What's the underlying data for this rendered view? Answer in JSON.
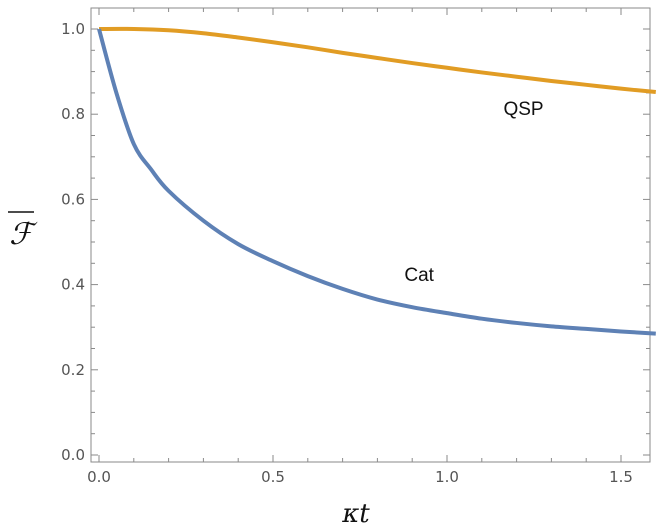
{
  "chart_data": {
    "type": "line",
    "xlabel": "κt",
    "ylabel": "ℱ",
    "xlim": [
      0,
      1.6
    ],
    "ylim": [
      -0.02,
      1.05
    ],
    "x_ticks": [
      "0.0",
      "0.5",
      "1.0",
      "1.5"
    ],
    "y_ticks": [
      "0.0",
      "0.2",
      "0.4",
      "0.6",
      "0.8",
      "1.0"
    ],
    "grid": false,
    "colors": {
      "QSP": "#e19c24",
      "Cat": "#5e81b5"
    },
    "series": [
      {
        "name": "QSP",
        "x": [
          0,
          0.1,
          0.2,
          0.3,
          0.4,
          0.5,
          0.6,
          0.7,
          0.8,
          0.9,
          1.0,
          1.1,
          1.2,
          1.3,
          1.4,
          1.5,
          1.6
        ],
        "values": [
          1.0,
          1.0,
          0.997,
          0.99,
          0.98,
          0.969,
          0.957,
          0.944,
          0.932,
          0.92,
          0.909,
          0.898,
          0.888,
          0.878,
          0.869,
          0.86,
          0.852
        ]
      },
      {
        "name": "Cat",
        "x": [
          0,
          0.05,
          0.1,
          0.15,
          0.2,
          0.3,
          0.4,
          0.5,
          0.6,
          0.7,
          0.8,
          0.9,
          1.0,
          1.1,
          1.2,
          1.3,
          1.4,
          1.5,
          1.6
        ],
        "values": [
          1.0,
          0.85,
          0.73,
          0.67,
          0.62,
          0.55,
          0.495,
          0.455,
          0.42,
          0.39,
          0.365,
          0.347,
          0.333,
          0.32,
          0.31,
          0.302,
          0.296,
          0.29,
          0.285
        ]
      }
    ],
    "annotations": [
      {
        "text": "QSP",
        "x": 1.22,
        "y": 0.815
      },
      {
        "text": "Cat",
        "x": 0.92,
        "y": 0.425
      }
    ]
  }
}
